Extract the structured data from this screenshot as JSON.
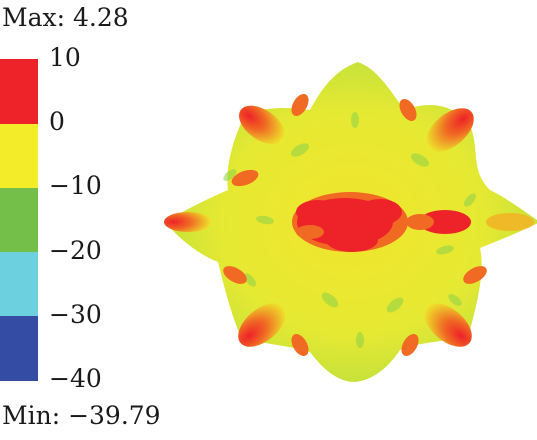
{
  "legend": {
    "max_label": "Max: 4.28",
    "min_label": "Min: −39.79",
    "ticks": [
      "10",
      "0",
      "−10",
      "−20",
      "−30",
      "−40"
    ],
    "segments": [
      {
        "from": 0,
        "to": 10,
        "color": "#ee2229"
      },
      {
        "from": -10,
        "to": 0,
        "color": "#f2ec29"
      },
      {
        "from": -20,
        "to": -10,
        "color": "#73bf4a"
      },
      {
        "from": -30,
        "to": -20,
        "color": "#6cd0df"
      },
      {
        "from": -40,
        "to": -30,
        "color": "#344ca3"
      }
    ]
  },
  "pattern": {
    "colors": {
      "red": "#ee2229",
      "orange": "#f06a23",
      "yellow": "#eeea2c",
      "yellow_green": "#c7e23a",
      "green": "#8cd24a"
    }
  }
}
